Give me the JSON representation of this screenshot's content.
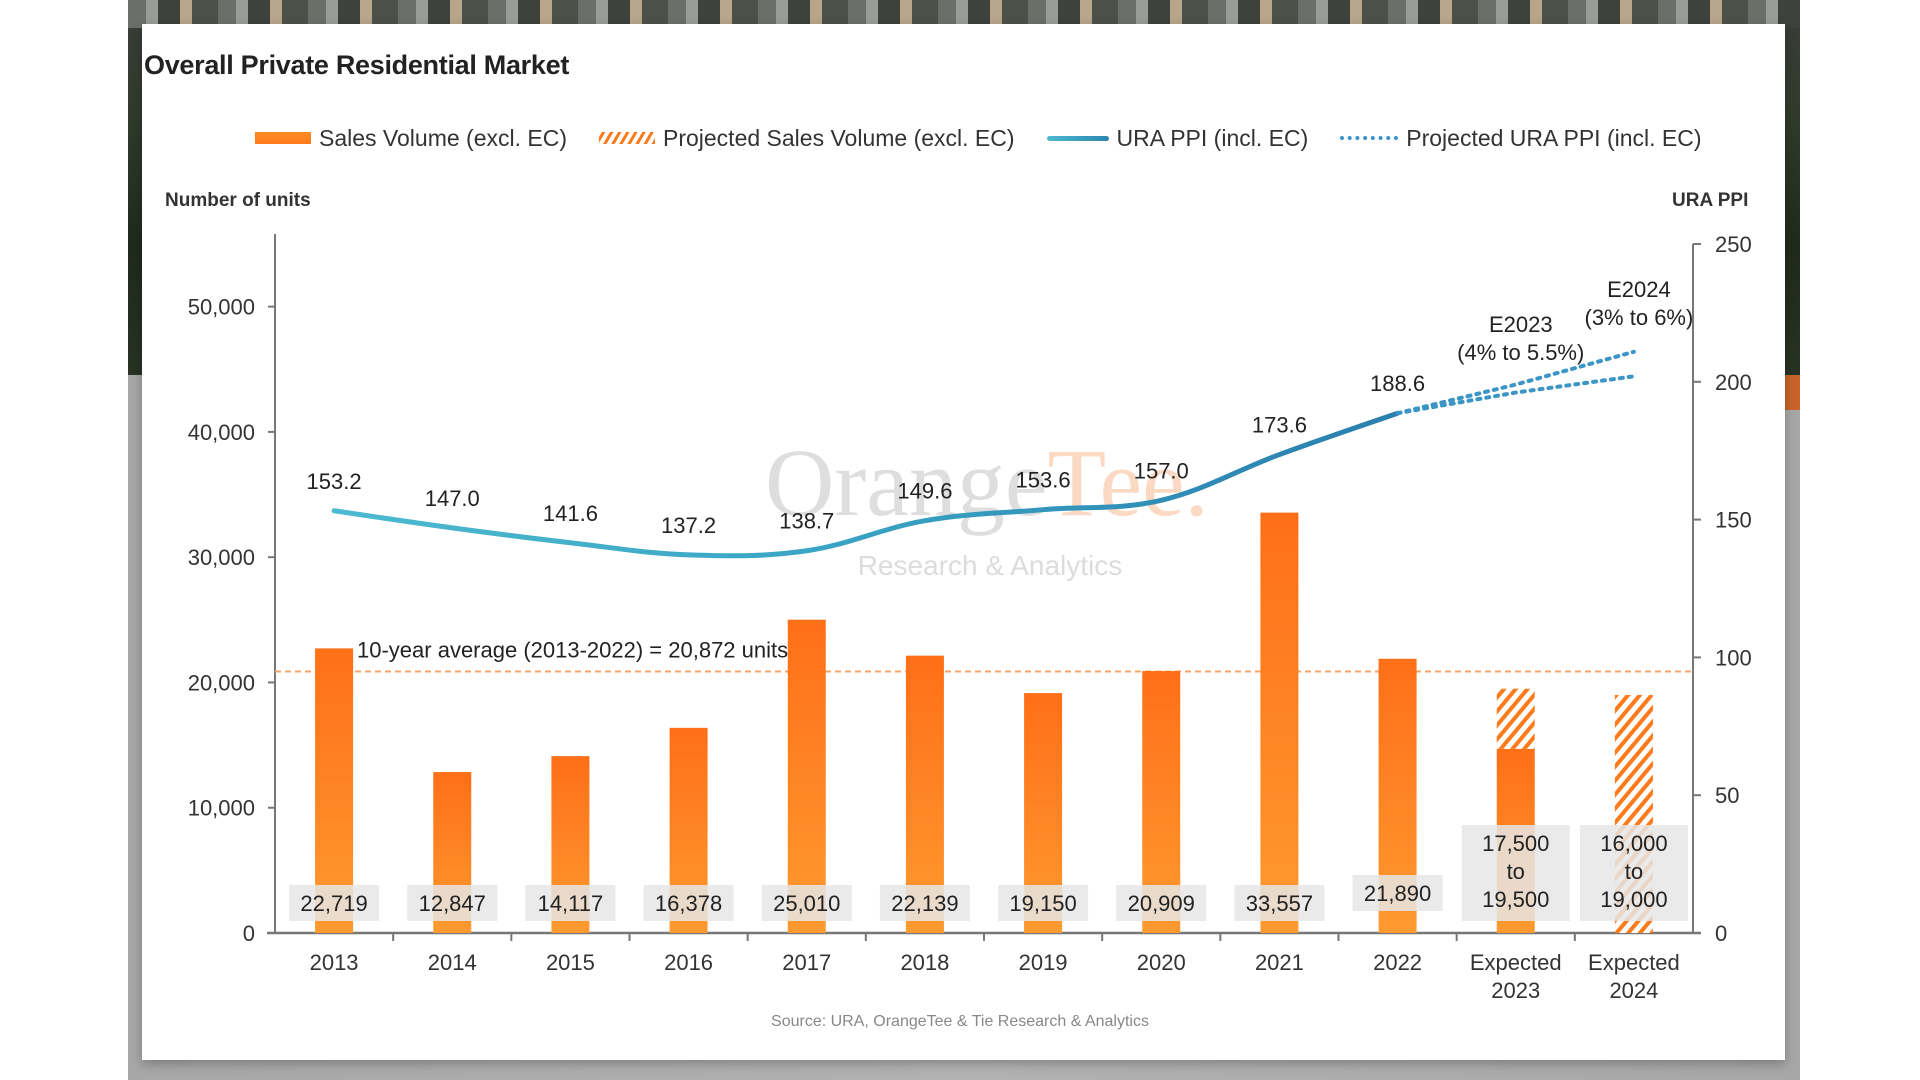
{
  "page": {
    "title": "Overall Private Residential Market",
    "source": "Source: URA, OrangeTee & Tie Research & Analytics",
    "watermark": {
      "brand_part1": "Orange",
      "brand_part2": "Tee.",
      "subtitle": "Research & Analytics"
    }
  },
  "legend": [
    {
      "label": "Sales Volume (excl. EC)",
      "icon": "solid-bar-swatch"
    },
    {
      "label": "Projected Sales Volume (excl. EC)",
      "icon": "hatched-bar-swatch"
    },
    {
      "label": "URA PPI (incl. EC)",
      "icon": "solid-line-swatch"
    },
    {
      "label": "Projected URA PPI (incl. EC)",
      "icon": "dotted-line-swatch"
    }
  ],
  "colors": {
    "bar": "#ff7a1a",
    "bar_light": "#ff9a30",
    "ppi_line": "#2d86b0",
    "ppi_line_start": "#4cbad0",
    "projected_ppi": "#3b95c6",
    "average_line": "#f5a46a",
    "label_box": "#e6e6e6"
  },
  "chart_data": {
    "type": "bar",
    "title": "Overall Private Residential Market",
    "xlabel": "",
    "ylabel": "Number of units",
    "y2label": "URA PPI",
    "ylim": [
      0,
      55000
    ],
    "yticks": [
      0,
      10000,
      20000,
      30000,
      40000,
      50000
    ],
    "ytick_labels": [
      "0",
      "10,000",
      "20,000",
      "30,000",
      "40,000",
      "50,000"
    ],
    "y2lim": [
      0,
      250
    ],
    "y2ticks": [
      0,
      50,
      100,
      150,
      200,
      250
    ],
    "y2tick_labels": [
      "0",
      "50",
      "100",
      "150",
      "200",
      "250"
    ],
    "legend_position": "top",
    "grid": false,
    "categories": [
      "2013",
      "2014",
      "2015",
      "2016",
      "2017",
      "2018",
      "2019",
      "2020",
      "2021",
      "2022",
      "Expected 2023",
      "Expected 2024"
    ],
    "category_lines": [
      [
        "2013"
      ],
      [
        "2014"
      ],
      [
        "2015"
      ],
      [
        "2016"
      ],
      [
        "2017"
      ],
      [
        "2018"
      ],
      [
        "2019"
      ],
      [
        "2020"
      ],
      [
        "2021"
      ],
      [
        "2022"
      ],
      [
        "Expected",
        "2023"
      ],
      [
        "Expected",
        "2024"
      ]
    ],
    "series": [
      {
        "name": "Sales Volume (excl. EC)",
        "type": "bar",
        "axis": "left",
        "values": [
          22719,
          12847,
          14117,
          16378,
          25010,
          22139,
          19150,
          20909,
          33557,
          21890,
          14700,
          null
        ]
      },
      {
        "name": "Projected Sales Volume (excl. EC)",
        "type": "bar-hatched",
        "axis": "left",
        "ranges": [
          null,
          null,
          null,
          null,
          null,
          null,
          null,
          null,
          null,
          null,
          [
            14700,
            19500
          ],
          [
            0,
            19000
          ]
        ]
      },
      {
        "name": "URA PPI (incl. EC)",
        "type": "line",
        "axis": "right",
        "values": [
          153.2,
          147.0,
          141.6,
          137.2,
          138.7,
          149.6,
          153.6,
          157.0,
          173.6,
          188.6,
          null,
          null
        ]
      },
      {
        "name": "Projected URA PPI (incl. EC)",
        "type": "line-dotted",
        "axis": "right",
        "upper": [
          null,
          null,
          null,
          null,
          null,
          null,
          null,
          null,
          null,
          188.6,
          199.0,
          210.9
        ],
        "lower": [
          null,
          null,
          null,
          null,
          null,
          null,
          null,
          null,
          null,
          188.6,
          196.1,
          202.0
        ]
      }
    ],
    "bar_labels": [
      [
        "22,719"
      ],
      [
        "12,847"
      ],
      [
        "14,117"
      ],
      [
        "16,378"
      ],
      [
        "25,010"
      ],
      [
        "22,139"
      ],
      [
        "19,150"
      ],
      [
        "20,909"
      ],
      [
        "33,557"
      ],
      [
        "21,890"
      ],
      [
        "17,500",
        "to",
        "19,500"
      ],
      [
        "16,000",
        "to",
        "19,000"
      ]
    ],
    "ppi_labels": [
      "153.2",
      "147.0",
      "141.6",
      "137.2",
      "138.7",
      "149.6",
      "153.6",
      "157.0",
      "173.6",
      "188.6"
    ],
    "annotations": [
      {
        "text": "10-year average (2013-2022) = 20,872 units",
        "type": "hline",
        "axis": "left",
        "value": 20872
      },
      {
        "text_lines": [
          "E2023",
          "(4% to 5.5%)"
        ],
        "category": "Expected 2023"
      },
      {
        "text_lines": [
          "E2024",
          "(3% to 6%)"
        ],
        "category": "Expected 2024"
      }
    ]
  }
}
